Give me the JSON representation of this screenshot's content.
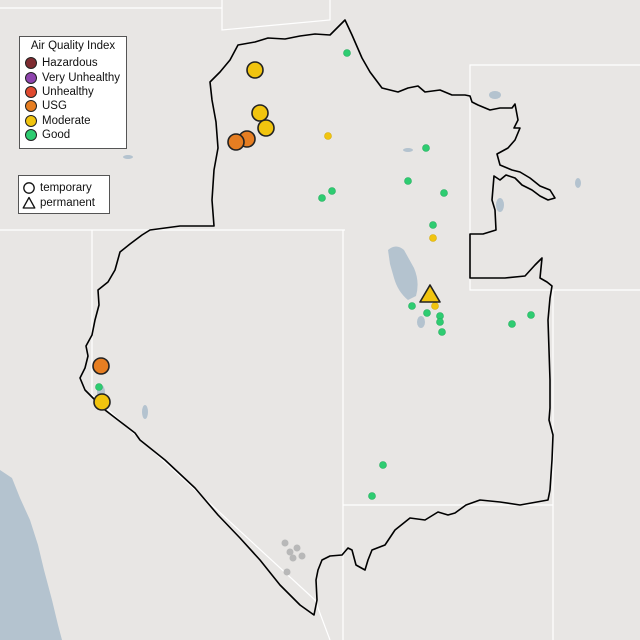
{
  "aqi_legend": {
    "title": "Air Quality Index",
    "categories": [
      {
        "label": "Hazardous",
        "color": "#7e2b30"
      },
      {
        "label": "Very Unhealthy",
        "color": "#8e44ad"
      },
      {
        "label": "Unhealthy",
        "color": "#e04a2f"
      },
      {
        "label": "USG",
        "color": "#e67e22"
      },
      {
        "label": "Moderate",
        "color": "#f1c40f"
      },
      {
        "label": "Good",
        "color": "#2ecc71"
      }
    ]
  },
  "type_legend": {
    "items": [
      {
        "label": "temporary",
        "symbol": "circle"
      },
      {
        "label": "permanent",
        "symbol": "triangle"
      }
    ]
  },
  "colors": {
    "land": "#e8e6e4",
    "water": "#b4c3cf",
    "state_border": "#ffffff",
    "region_outline": "#000000",
    "inactive_monitor": "#b8b8b8"
  }
}
